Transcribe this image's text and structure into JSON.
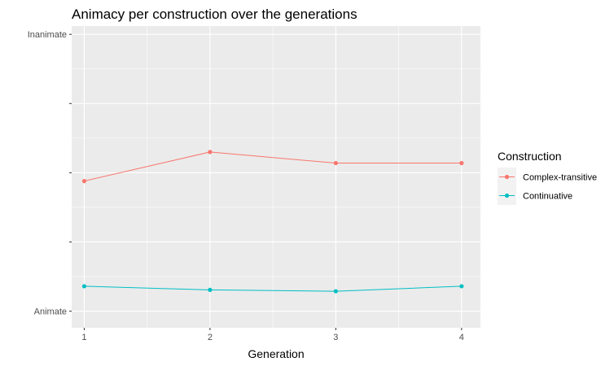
{
  "chart_data": {
    "type": "line",
    "title": "Animacy per construction over the generations",
    "xlabel": "Generation",
    "ylabel": "",
    "x": [
      1,
      2,
      3,
      4
    ],
    "xlim": [
      0.9,
      4.15
    ],
    "ylim": [
      -0.06,
      1.03
    ],
    "y_ticks": [
      {
        "value": 0,
        "label": "Animate"
      },
      {
        "value": 0.25,
        "label": ""
      },
      {
        "value": 0.5,
        "label": ""
      },
      {
        "value": 0.75,
        "label": ""
      },
      {
        "value": 1,
        "label": "Inanimate"
      }
    ],
    "grid": true,
    "legend": {
      "title": "Construction",
      "position": "right"
    },
    "series": [
      {
        "name": "Complex-transitive",
        "color": "#F8766D",
        "values": [
          0.47,
          0.575,
          0.535,
          0.535
        ]
      },
      {
        "name": "Continuative",
        "color": "#00BFC4",
        "values": [
          0.09,
          0.077,
          0.072,
          0.09
        ]
      }
    ]
  }
}
